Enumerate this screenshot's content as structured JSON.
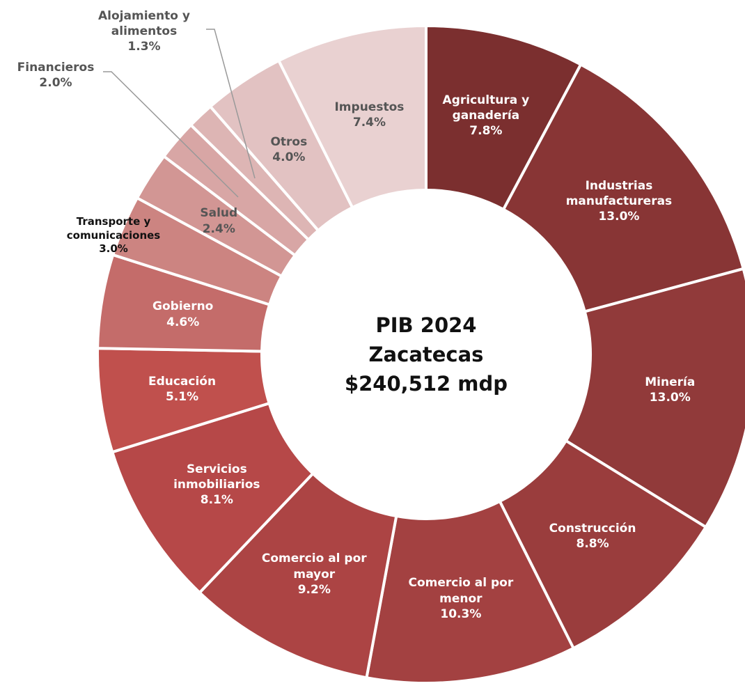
{
  "chart_data": {
    "type": "donut",
    "title": "PIB 2024 Zacatecas",
    "subtitle": "$240,512 mdp",
    "categories": [
      "Agricultura y ganadería",
      "Industrias manufactureras",
      "Minería",
      "Construcción",
      "Comercio al por menor",
      "Comercio al por mayor",
      "Servicios inmobiliarios",
      "Educación",
      "Gobierno",
      "Transporte y comunicaciones",
      "Salud",
      "Financieros",
      "Alojamiento y alimentos",
      "Otros",
      "Impuestos"
    ],
    "values": [
      7.8,
      13.0,
      13.0,
      8.8,
      10.3,
      9.2,
      8.1,
      5.1,
      4.6,
      3.0,
      2.4,
      2.0,
      1.3,
      4.0,
      7.4
    ],
    "value_labels": [
      "7.8%",
      "13.0%",
      "13.0%",
      "8.8%",
      "10.3%",
      "9.2%",
      "8.1%",
      "5.1%",
      "4.6%",
      "3.0%",
      "2.4%",
      "2.0%",
      "1.3%",
      "4.0%",
      "7.4%"
    ],
    "colors": [
      "#7b2f2f",
      "#883535",
      "#913a3a",
      "#9a3d3d",
      "#a34141",
      "#ac4444",
      "#b64848",
      "#c0504d",
      "#c46c6a",
      "#cc8481",
      "#d29694",
      "#d8a6a5",
      "#ddb5b4",
      "#e2c2c2",
      "#e9d1d1"
    ]
  }
}
